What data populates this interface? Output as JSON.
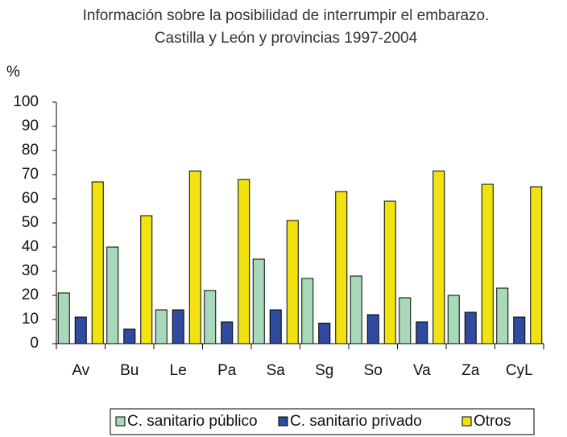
{
  "chart_data": {
    "type": "bar",
    "title": "Información sobre la posibilidad de interrumpir el embarazo. Castilla y León y provincias 1997-2004",
    "y_label": "%",
    "categories": [
      "Av",
      "Bu",
      "Le",
      "Pa",
      "Sa",
      "Sg",
      "So",
      "Va",
      "Za",
      "CyL"
    ],
    "series": [
      {
        "name": "C. sanitario público",
        "color": "#a9d9bb",
        "values": [
          21,
          40,
          14,
          22,
          35,
          27,
          28,
          19,
          20,
          23
        ]
      },
      {
        "name": "C. sanitario privado",
        "color": "#2f4a9e",
        "values": [
          11,
          6,
          14,
          9,
          14,
          8.5,
          12,
          9,
          13,
          11
        ]
      },
      {
        "name": "Otros",
        "color": "#f2e20f",
        "values": [
          67,
          53,
          71.5,
          68,
          51,
          63,
          59,
          71.5,
          66,
          65
        ]
      }
    ],
    "ylim": [
      0,
      100
    ],
    "yticks": [
      0,
      10,
      20,
      30,
      40,
      50,
      60,
      70,
      80,
      90,
      100
    ],
    "grid": false
  }
}
